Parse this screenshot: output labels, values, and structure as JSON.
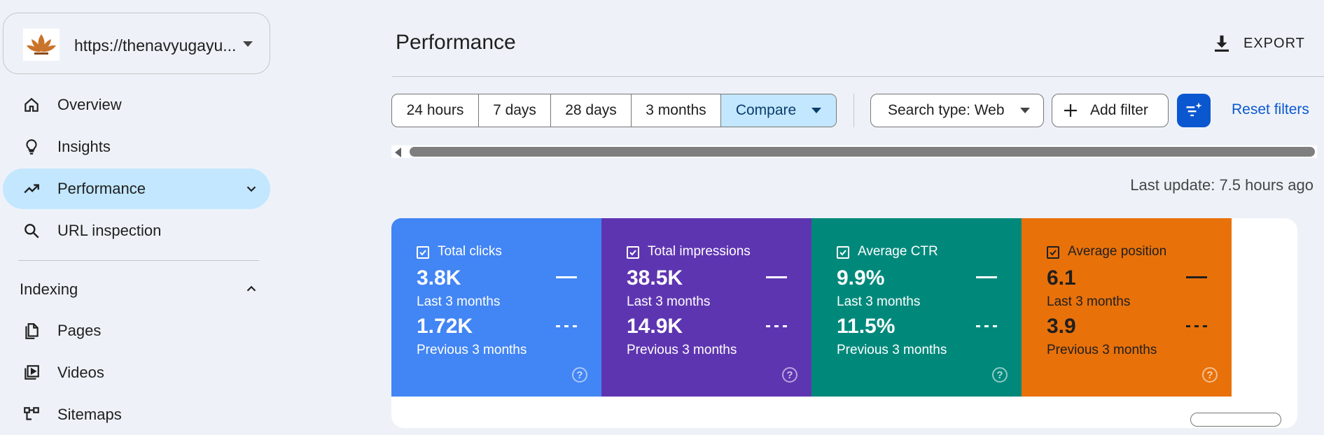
{
  "property": {
    "url": "https://thenavyugayu...",
    "logo": "lotus-logo"
  },
  "sidebar": {
    "items": [
      {
        "label": "Overview",
        "icon": "home-icon"
      },
      {
        "label": "Insights",
        "icon": "lightbulb-icon"
      },
      {
        "label": "Performance",
        "icon": "trending-up-icon",
        "active": true
      },
      {
        "label": "URL inspection",
        "icon": "search-icon"
      }
    ],
    "section": {
      "label": "Indexing"
    },
    "section_items": [
      {
        "label": "Pages",
        "icon": "pages-icon"
      },
      {
        "label": "Videos",
        "icon": "video-icon"
      },
      {
        "label": "Sitemaps",
        "icon": "sitemap-icon"
      }
    ]
  },
  "header": {
    "title": "Performance",
    "export_label": "EXPORT"
  },
  "filters": {
    "ranges": [
      "24 hours",
      "7 days",
      "28 days",
      "3 months"
    ],
    "compare_label": "Compare",
    "search_type": "Search type: Web",
    "add_filter": "Add filter",
    "reset": "Reset filters"
  },
  "last_update": "Last update: 7.5 hours ago",
  "metrics": [
    {
      "name": "Total clicks",
      "current": "3.8K",
      "current_label": "Last 3 months",
      "previous": "1.72K",
      "previous_label": "Previous 3 months",
      "color": "#4285f4"
    },
    {
      "name": "Total impressions",
      "current": "38.5K",
      "current_label": "Last 3 months",
      "previous": "14.9K",
      "previous_label": "Previous 3 months",
      "color": "#5e35b1"
    },
    {
      "name": "Average CTR",
      "current": "9.9%",
      "current_label": "Last 3 months",
      "previous": "11.5%",
      "previous_label": "Previous 3 months",
      "color": "#00897b"
    },
    {
      "name": "Average position",
      "current": "6.1",
      "current_label": "Last 3 months",
      "previous": "3.9",
      "previous_label": "Previous 3 months",
      "color": "#e8710a"
    }
  ],
  "help_glyph": "?"
}
